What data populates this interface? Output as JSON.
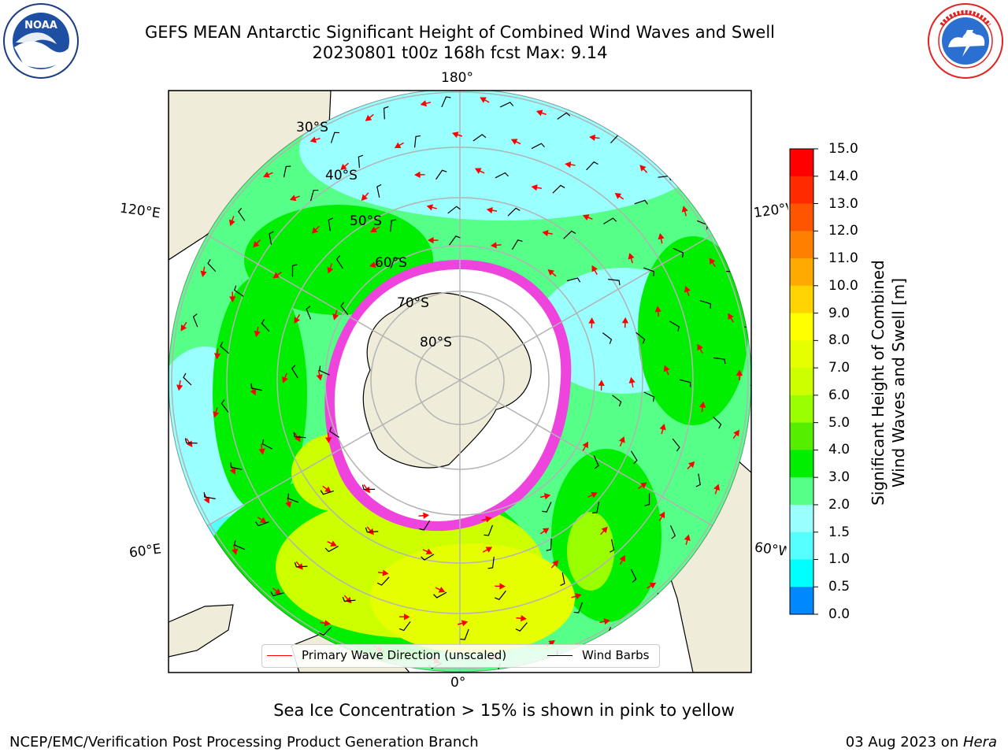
{
  "header": {
    "title_line1": "GEFS MEAN Antarctic Significant Height of Combined Wind Waves and Swell",
    "title_line2": "20230801 t00z 168h fcst   Max: 9.14"
  },
  "logos": {
    "left": "noaa-logo",
    "right": "national-weather-service-logo"
  },
  "map": {
    "projection": "south-polar-stereographic",
    "longitude_labels": {
      "top": "180°",
      "upper_left": "120°E",
      "upper_right": "120°W",
      "lower_left": "60°E",
      "lower_right": "60°W",
      "bottom": "0°"
    },
    "latitude_labels": [
      "30°S",
      "40°S",
      "50°S",
      "60°S",
      "70°S",
      "80°S"
    ],
    "colors": {
      "land": "#efedd9",
      "ice": "#ffffff",
      "ice_edge": "#ee44dd",
      "arrows": "#ff0000",
      "barbs": "#000000",
      "grid": "#b3b3b3"
    }
  },
  "colorbar": {
    "label_line1": "Significant Height of Combined",
    "label_line2": "Wind Waves and Swell [m]",
    "ticks": [
      "15.0",
      "14.0",
      "13.0",
      "12.0",
      "11.0",
      "10.0",
      "9.0",
      "8.0",
      "7.0",
      "6.0",
      "5.0",
      "4.0",
      "3.0",
      "2.0",
      "1.5",
      "1.0",
      "0.5",
      "0.0"
    ],
    "colors": [
      "#ff0000",
      "#ff2a00",
      "#ff5500",
      "#ff8000",
      "#ffaa00",
      "#ffd400",
      "#ffff00",
      "#e6ff00",
      "#ccff00",
      "#99ff00",
      "#55ee00",
      "#00ee00",
      "#55ff88",
      "#99ffff",
      "#55ffff",
      "#00ffff",
      "#0088ff",
      "#0044ff",
      "#0000ff"
    ]
  },
  "legend": {
    "wave_direction": "Primary Wave Direction (unscaled)",
    "wind_barbs": "Wind Barbs"
  },
  "notes": {
    "ice": "Sea Ice Concentration > 15% is shown in pink to yellow"
  },
  "footer": {
    "left": "NCEP/EMC/Verification Post Processing Product Generation Branch",
    "date": "03 Aug 2023 on ",
    "machine": "Hera"
  }
}
